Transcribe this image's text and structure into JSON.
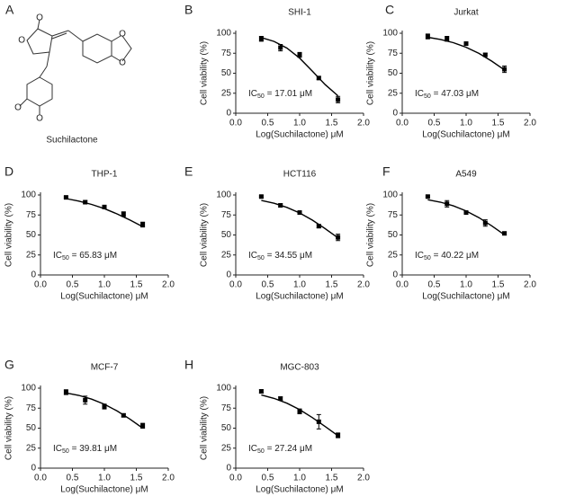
{
  "panel_a": {
    "label": "A",
    "caption": "Suchilactone",
    "atom_labels": [
      "O",
      "O",
      "O",
      "O",
      "O",
      "O"
    ]
  },
  "chart_data": [
    {
      "type": "scatter",
      "panel_label": "B",
      "title": "SHI-1",
      "xlabel": "Log(Suchilactone) μM",
      "ylabel": "Cell viability (%)",
      "annotation": [
        "IC",
        "50",
        " = 17.01 μM"
      ],
      "x": [
        0.4,
        0.7,
        1.0,
        1.3,
        1.6
      ],
      "values": [
        93,
        82,
        73,
        44,
        17
      ],
      "errors": [
        3,
        4,
        3,
        2,
        4
      ],
      "color": "#000000",
      "fit": {
        "x": [
          0.4,
          0.6,
          0.8,
          1.0,
          1.2,
          1.4,
          1.6
        ],
        "values": [
          94.6,
          89.8,
          81.5,
          68.9,
          52.6,
          35.7,
          21.8
        ]
      },
      "xlim": [
        0,
        2
      ],
      "ylim": [
        0,
        100
      ],
      "xticks": [
        {
          "value": 0,
          "label": "0.0"
        },
        {
          "value": 0.5,
          "label": "0.5"
        },
        {
          "value": 1,
          "label": "1.0"
        },
        {
          "value": 1.5,
          "label": "1.5"
        },
        {
          "value": 2,
          "label": "2.0"
        }
      ],
      "yticks": [
        0,
        25,
        50,
        75,
        100
      ]
    },
    {
      "type": "scatter",
      "panel_label": "C",
      "title": "Jurkat",
      "xlabel": "Log(Suchilactone) μM",
      "ylabel": "Cell viability (%)",
      "annotation": [
        "IC",
        "50",
        " = 47.03 μM"
      ],
      "x": [
        0.4,
        0.7,
        1.0,
        1.3,
        1.6
      ],
      "values": [
        96,
        93,
        87,
        73,
        55
      ],
      "errors": [
        3,
        3,
        2,
        2,
        4
      ],
      "color": "#000000",
      "fit": {
        "x": [
          0.4,
          0.6,
          0.8,
          1.0,
          1.2,
          1.4,
          1.6
        ],
        "values": [
          94.9,
          92.2,
          88.2,
          82.5,
          74.8,
          65.2,
          54.2
        ]
      },
      "xlim": [
        0,
        2
      ],
      "ylim": [
        0,
        100
      ],
      "xticks": [
        {
          "value": 0,
          "label": "0.0"
        },
        {
          "value": 0.5,
          "label": "0.5"
        },
        {
          "value": 1,
          "label": "1.0"
        },
        {
          "value": 1.5,
          "label": "1.5"
        },
        {
          "value": 2,
          "label": "2.0"
        }
      ],
      "yticks": [
        0,
        25,
        50,
        75,
        100
      ]
    },
    {
      "type": "scatter",
      "panel_label": "D",
      "title": "THP-1",
      "xlabel": "Log(Suchilactone) μM",
      "ylabel": "Cell viability (%)",
      "annotation": [
        "IC",
        "50",
        " = 65.83 μM"
      ],
      "x": [
        0.4,
        0.7,
        1.0,
        1.3,
        1.6
      ],
      "values": [
        97,
        91,
        85,
        76,
        63
      ],
      "errors": [
        1,
        2,
        2,
        3,
        3
      ],
      "color": "#000000",
      "fit": {
        "x": [
          0.4,
          0.6,
          0.8,
          1.0,
          1.2,
          1.4,
          1.6
        ],
        "values": [
          95.5,
          92.4,
          88.2,
          82.9,
          76.3,
          68.6,
          60.5
        ]
      },
      "xlim": [
        0,
        2
      ],
      "ylim": [
        0,
        100
      ],
      "xticks": [
        {
          "value": 0,
          "label": "0.0"
        },
        {
          "value": 0.5,
          "label": "0.5"
        },
        {
          "value": 1,
          "label": "1.0"
        },
        {
          "value": 1.5,
          "label": "1.5"
        },
        {
          "value": 2,
          "label": "2.0"
        }
      ],
      "yticks": [
        0,
        25,
        50,
        75,
        100
      ]
    },
    {
      "type": "scatter",
      "panel_label": "E",
      "title": "HCT116",
      "xlabel": "Log(Suchilactone) μM",
      "ylabel": "Cell viability (%)",
      "annotation": [
        "IC",
        "50",
        " = 34.55 μM"
      ],
      "x": [
        0.4,
        0.7,
        1.0,
        1.3,
        1.6
      ],
      "values": [
        98,
        87,
        78,
        61,
        47
      ],
      "errors": [
        1,
        2,
        2,
        2,
        4
      ],
      "color": "#000000",
      "fit": {
        "x": [
          0.4,
          0.6,
          0.8,
          1.0,
          1.2,
          1.4,
          1.6
        ],
        "values": [
          93.2,
          89.7,
          84.5,
          77.5,
          68.5,
          57.9,
          46.4
        ]
      },
      "xlim": [
        0,
        2
      ],
      "ylim": [
        0,
        100
      ],
      "xticks": [
        {
          "value": 0,
          "label": "0.0"
        },
        {
          "value": 0.5,
          "label": "0.5"
        },
        {
          "value": 1,
          "label": "1.0"
        },
        {
          "value": 1.5,
          "label": "1.5"
        },
        {
          "value": 2,
          "label": "2.0"
        }
      ],
      "yticks": [
        0,
        25,
        50,
        75,
        100
      ]
    },
    {
      "type": "scatter",
      "panel_label": "F",
      "title": "A549",
      "xlabel": "Log(Suchilactone) μM",
      "ylabel": "Cell viability (%)",
      "annotation": [
        "IC",
        "50",
        " = 40.22 μM"
      ],
      "x": [
        0.4,
        0.7,
        1.0,
        1.3,
        1.6
      ],
      "values": [
        98,
        89,
        78,
        65,
        52
      ],
      "errors": [
        1,
        4,
        2,
        4,
        2
      ],
      "color": "#000000",
      "fit": {
        "x": [
          0.4,
          0.6,
          0.8,
          1.0,
          1.2,
          1.4,
          1.6
        ],
        "values": [
          94.1,
          91.0,
          86.4,
          80.1,
          71.7,
          61.5,
          50.2
        ]
      },
      "xlim": [
        0,
        2
      ],
      "ylim": [
        0,
        100
      ],
      "xticks": [
        {
          "value": 0,
          "label": "0.0"
        },
        {
          "value": 0.5,
          "label": "0.5"
        },
        {
          "value": 1,
          "label": "1.0"
        },
        {
          "value": 1.5,
          "label": "1.5"
        },
        {
          "value": 2,
          "label": "2.0"
        }
      ],
      "yticks": [
        0,
        25,
        50,
        75,
        100
      ]
    },
    {
      "type": "scatter",
      "panel_label": "G",
      "title": "MCF-7",
      "xlabel": "Log(Suchilactone) μM",
      "ylabel": "Cell viability (%)",
      "annotation": [
        "IC",
        "50",
        " = 39.81 μM"
      ],
      "x": [
        0.4,
        0.7,
        1.0,
        1.3,
        1.6
      ],
      "values": [
        95,
        85,
        77,
        66,
        53
      ],
      "errors": [
        3,
        5,
        3,
        2,
        3
      ],
      "color": "#000000",
      "fit": {
        "x": [
          0.4,
          0.6,
          0.8,
          1.0,
          1.2,
          1.4,
          1.6
        ],
        "values": [
          94.1,
          91.0,
          86.3,
          79.9,
          71.5,
          61.3,
          50.0
        ]
      },
      "xlim": [
        0,
        2
      ],
      "ylim": [
        0,
        100
      ],
      "xticks": [
        {
          "value": 0,
          "label": "0.0"
        },
        {
          "value": 0.5,
          "label": "0.5"
        },
        {
          "value": 1,
          "label": "1.0"
        },
        {
          "value": 1.5,
          "label": "1.5"
        },
        {
          "value": 2,
          "label": "2.0"
        }
      ],
      "yticks": [
        0,
        25,
        50,
        75,
        100
      ]
    },
    {
      "type": "scatter",
      "panel_label": "H",
      "title": "MGC-803",
      "xlabel": "Log(Suchilactone) μM",
      "ylabel": "Cell viability (%)",
      "annotation": [
        "IC",
        "50",
        " = 27.24 μM"
      ],
      "x": [
        0.4,
        0.7,
        1.0,
        1.3,
        1.6
      ],
      "values": [
        96,
        87,
        71,
        58,
        41
      ],
      "errors": [
        2,
        2,
        3,
        9,
        3
      ],
      "color": "#000000",
      "fit": {
        "x": [
          0.4,
          0.6,
          0.8,
          1.0,
          1.2,
          1.4,
          1.6
        ],
        "values": [
          91.5,
          87.2,
          81.2,
          73.2,
          63.2,
          52.0,
          40.6
        ]
      },
      "xlim": [
        0,
        2
      ],
      "ylim": [
        0,
        100
      ],
      "xticks": [
        {
          "value": 0,
          "label": "0.0"
        },
        {
          "value": 0.5,
          "label": "0.5"
        },
        {
          "value": 1,
          "label": "1.0"
        },
        {
          "value": 1.5,
          "label": "1.5"
        },
        {
          "value": 2,
          "label": "2.0"
        }
      ],
      "yticks": [
        0,
        25,
        50,
        75,
        100
      ]
    }
  ]
}
